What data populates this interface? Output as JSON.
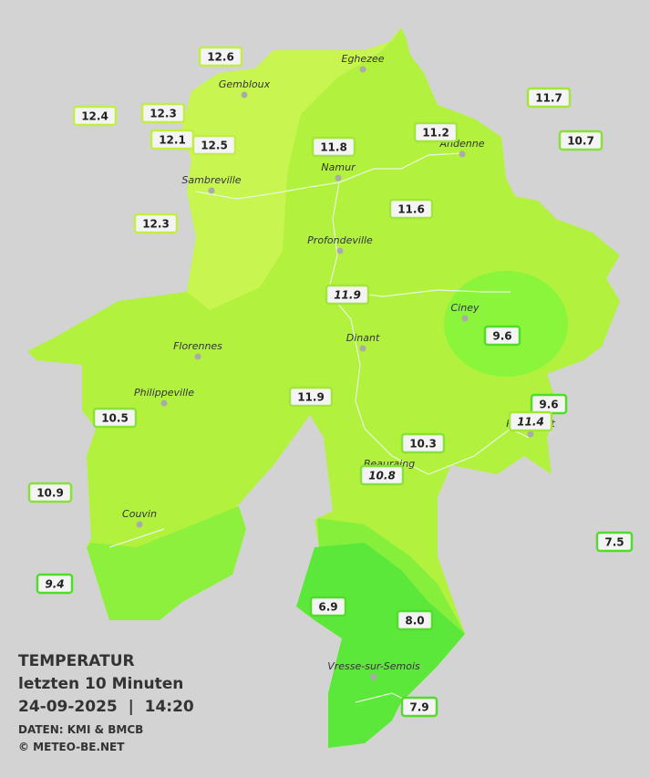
{
  "title": "TEMPERATUR",
  "subtitle": "letzten 10 Minuten",
  "timestamp": "24-09-2025  |  14:20",
  "credits": [
    "DATEN: KMI & BMCB",
    "© METEO-BE.NET"
  ],
  "cities": [
    "Eghezee",
    "Gembloux",
    "Andenne",
    "Namur",
    "Sambreville",
    "Profondeville",
    "Ciney",
    "Dinant",
    "Florennes",
    "Philippeville",
    "Rochefort",
    "Beauraing",
    "Couvin",
    "Vresse-sur-Semois"
  ],
  "stations": [
    {
      "label": "12.6",
      "italic": false
    },
    {
      "label": "12.4",
      "italic": false
    },
    {
      "label": "12.3",
      "italic": false
    },
    {
      "label": "12.1",
      "italic": false
    },
    {
      "label": "12.5",
      "italic": false
    },
    {
      "label": "11.8",
      "italic": false
    },
    {
      "label": "11.2",
      "italic": false
    },
    {
      "label": "11.7",
      "italic": false
    },
    {
      "label": "10.7",
      "italic": false
    },
    {
      "label": "12.3",
      "italic": false
    },
    {
      "label": "11.6",
      "italic": false
    },
    {
      "label": "11.9",
      "italic": true
    },
    {
      "label": "9.6",
      "italic": false
    },
    {
      "label": "11.9",
      "italic": false
    },
    {
      "label": "9.6",
      "italic": false
    },
    {
      "label": "11.4",
      "italic": true
    },
    {
      "label": "10.5",
      "italic": false
    },
    {
      "label": "10.3",
      "italic": false
    },
    {
      "label": "10.8",
      "italic": true
    },
    {
      "label": "10.9",
      "italic": false
    },
    {
      "label": "7.5",
      "italic": false
    },
    {
      "label": "9.4",
      "italic": true
    },
    {
      "label": "6.9",
      "italic": false
    },
    {
      "label": "8.0",
      "italic": false
    },
    {
      "label": "7.9",
      "italic": false
    }
  ]
}
